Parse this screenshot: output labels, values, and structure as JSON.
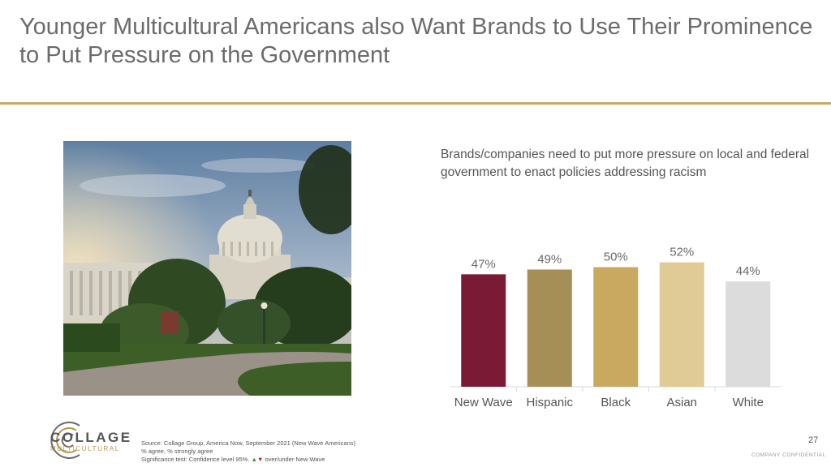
{
  "slide": {
    "title": "Younger Multicultural Americans also Want Brands to Use Their Prominence to Put Pressure on the Government",
    "page_number": "27",
    "confidential": "COMPANY CONFIDENTIAL"
  },
  "logo": {
    "line1": "COLLAGE",
    "line2": "MULTICULTURAL"
  },
  "source": {
    "line1": "Source: Collage Group, America Now, September 2021 (New Wave Americans)",
    "line2": "% agree, % strongly agree",
    "line3_prefix": "Significance test: Confidence level 95%.",
    "up_symbol": "▲",
    "down_symbol": "▼",
    "line3_suffix": "over/under New Wave"
  },
  "chart_data": {
    "type": "bar",
    "title": "Brands/companies need to put more pressure on local and federal government to enact policies addressing racism",
    "categories": [
      "New Wave",
      "Hispanic",
      "Black",
      "Asian",
      "White"
    ],
    "values": [
      47,
      49,
      50,
      52,
      44
    ],
    "value_labels": [
      "47%",
      "49%",
      "50%",
      "52%",
      "44%"
    ],
    "colors": [
      "#7a1a35",
      "#a68f57",
      "#c9a95f",
      "#e0ca95",
      "#dcdcdc"
    ],
    "ylim": [
      0,
      60
    ],
    "grid": false,
    "legend": "none"
  },
  "colors": {
    "accent": "#c9a95f",
    "title_text": "#6b6b6b"
  }
}
